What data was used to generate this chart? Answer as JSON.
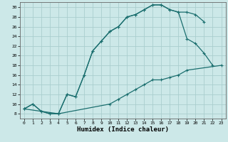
{
  "xlabel": "Humidex (Indice chaleur)",
  "bg_color": "#cce8e8",
  "grid_color": "#aacece",
  "line_color": "#1a6e6e",
  "xlim": [
    -0.5,
    23.5
  ],
  "ylim": [
    7,
    31
  ],
  "xticks": [
    0,
    1,
    2,
    3,
    4,
    5,
    6,
    7,
    8,
    9,
    10,
    11,
    12,
    13,
    14,
    15,
    16,
    17,
    18,
    19,
    20,
    21,
    22,
    23
  ],
  "yticks": [
    8,
    10,
    12,
    14,
    16,
    18,
    20,
    22,
    24,
    26,
    28,
    30
  ],
  "line1_x": [
    0,
    1,
    2,
    3,
    4,
    5,
    6,
    7,
    8,
    9,
    10,
    11,
    12,
    13,
    14,
    15,
    16,
    17,
    18,
    19,
    20,
    21
  ],
  "line1_y": [
    9,
    10,
    8.5,
    8,
    8,
    12,
    11.5,
    16,
    21,
    23,
    25,
    26,
    28,
    28.5,
    29.5,
    30.5,
    30.5,
    29.5,
    29,
    29,
    28.5,
    27
  ],
  "line2_x": [
    0,
    1,
    2,
    3,
    4,
    5,
    6,
    7,
    8,
    9,
    10,
    11,
    12,
    13,
    14,
    15,
    16,
    17,
    18,
    19,
    20,
    21,
    22
  ],
  "line2_y": [
    9,
    10,
    8.5,
    8,
    8,
    12,
    11.5,
    16,
    21,
    23,
    25,
    26,
    28,
    28.5,
    29.5,
    30.5,
    30.5,
    29.5,
    29,
    23.5,
    22.5,
    20.5,
    18
  ],
  "line3_x": [
    0,
    4,
    10,
    11,
    12,
    13,
    14,
    15,
    16,
    17,
    18,
    19,
    23
  ],
  "line3_y": [
    9,
    8,
    10,
    11,
    12,
    13,
    14,
    15,
    15,
    15.5,
    16,
    17,
    18
  ],
  "xlabel_fontsize": 6.5,
  "tick_fontsize": 4.5,
  "linewidth": 0.9,
  "markersize": 2.8
}
